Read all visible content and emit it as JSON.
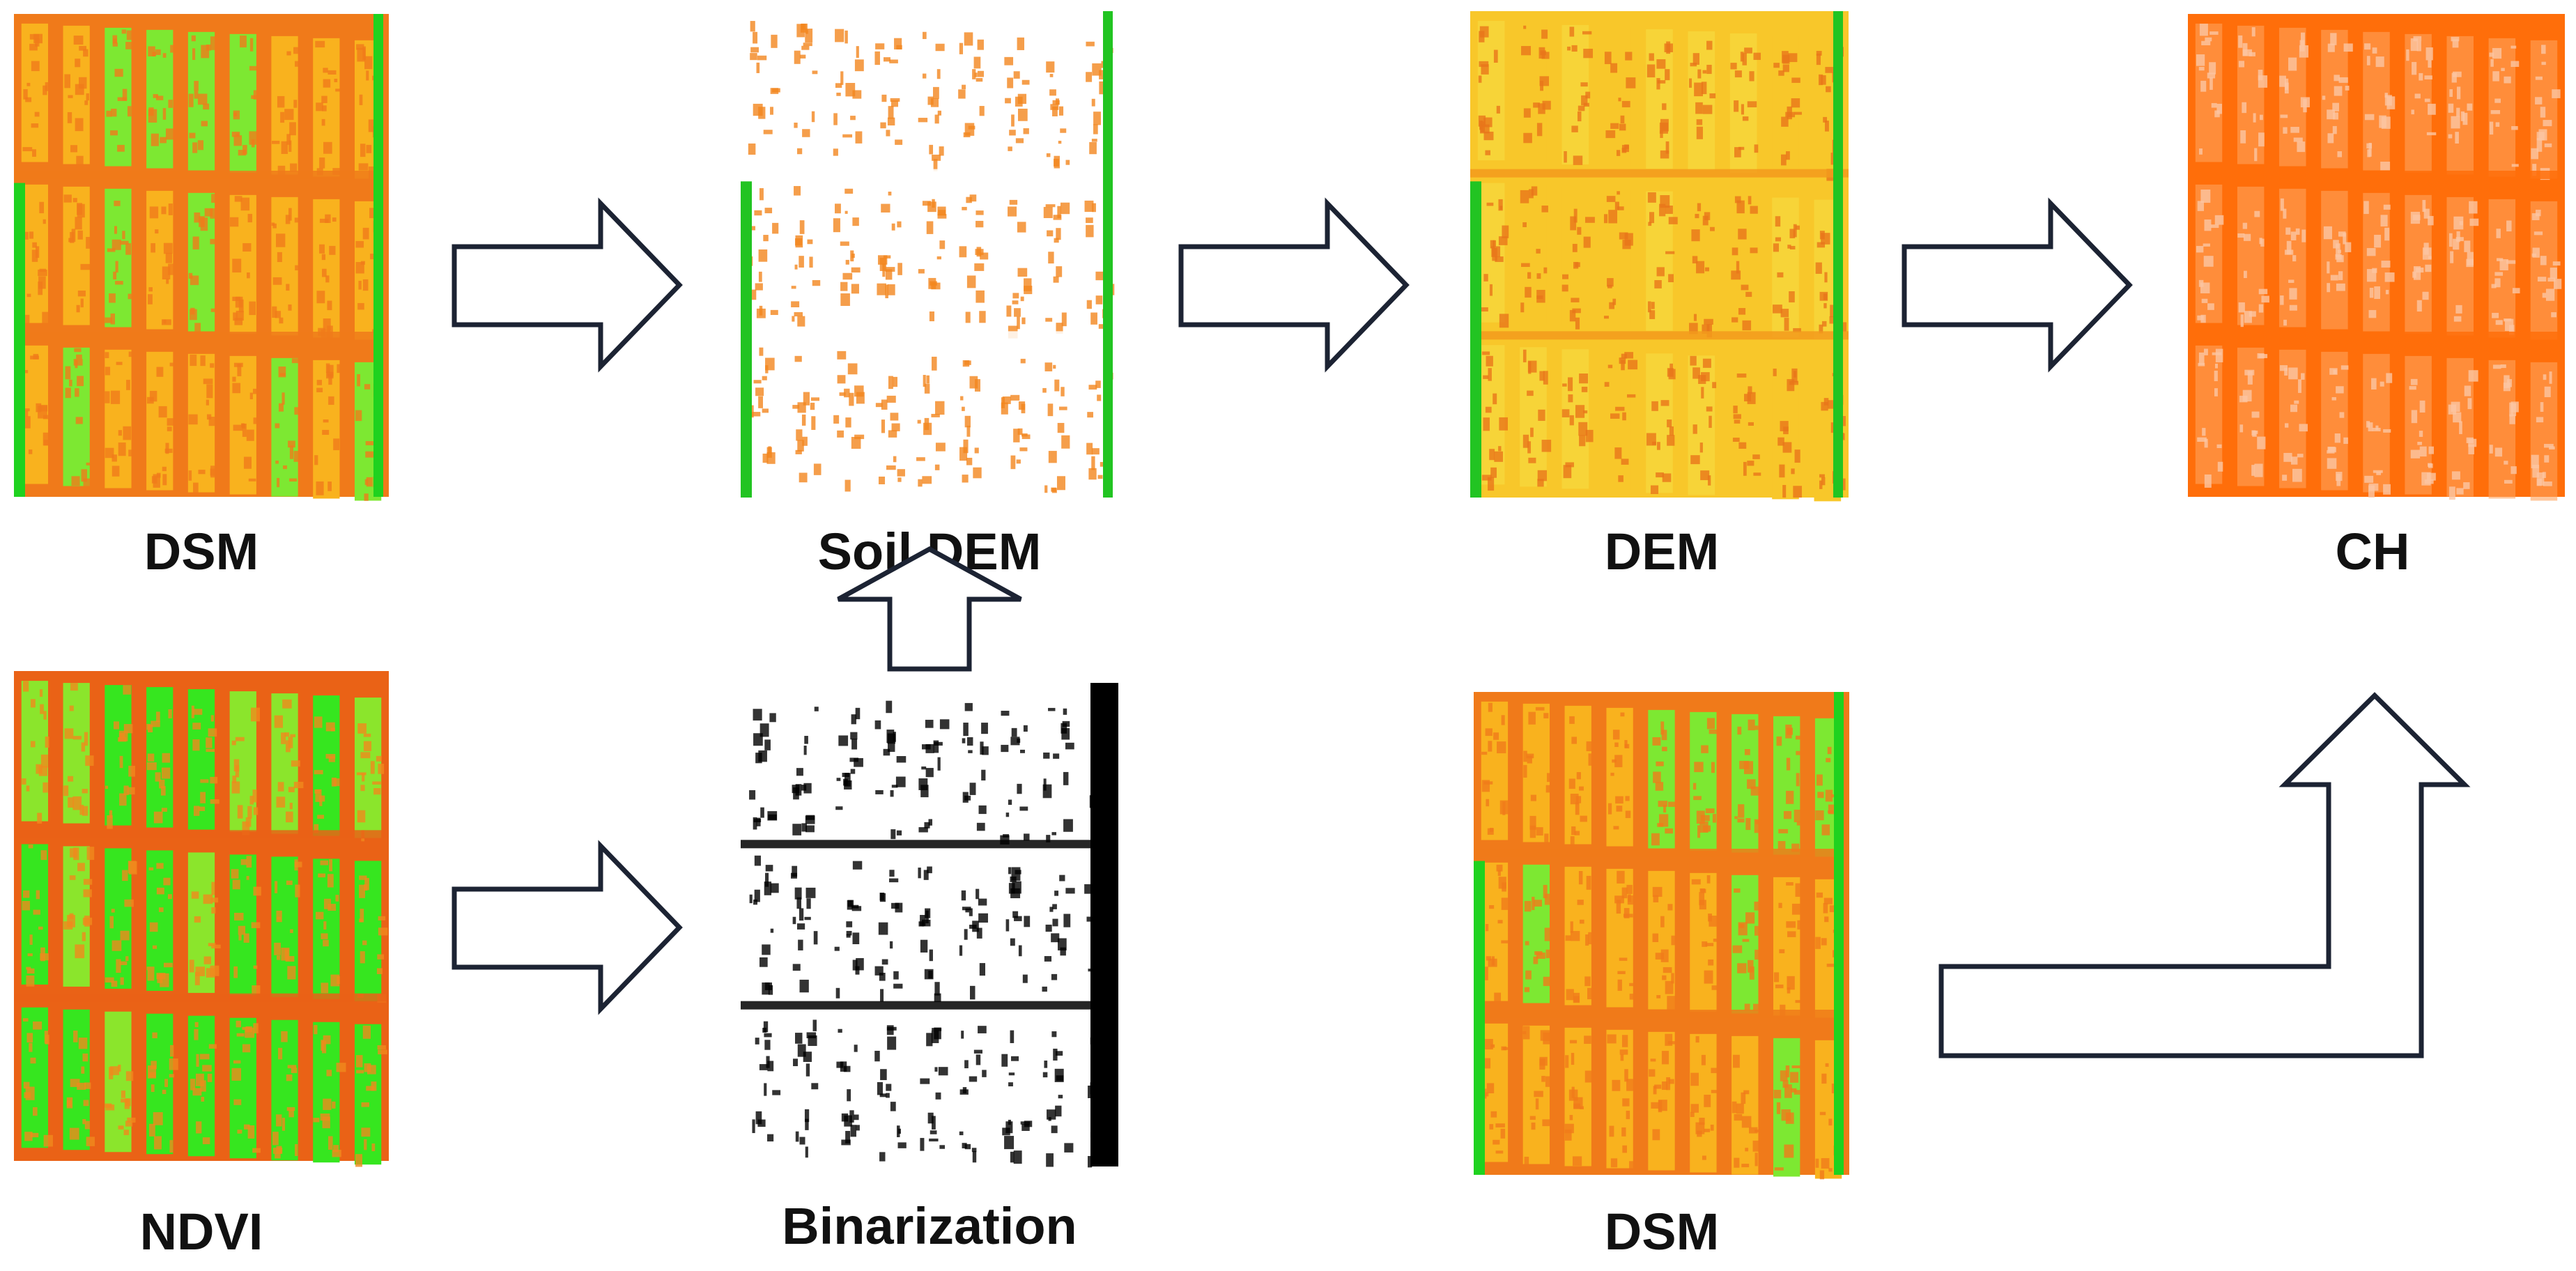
{
  "panels": {
    "dsm_top": {
      "label": "DSM",
      "style": "dsm"
    },
    "soil_dem": {
      "label": "Soil DEM",
      "style": "soil"
    },
    "dem": {
      "label": "DEM",
      "style": "dem"
    },
    "ch": {
      "label": "CH",
      "style": "ch"
    },
    "ndvi": {
      "label": "NDVI",
      "style": "ndvi"
    },
    "binarization": {
      "label": "Binarization",
      "style": "binary"
    },
    "dsm_bottom": {
      "label": "DSM",
      "style": "dsm"
    }
  },
  "arrows": [
    {
      "from": "DSM",
      "to": "Soil DEM"
    },
    {
      "from": "Soil DEM",
      "to": "DEM"
    },
    {
      "from": "DEM",
      "to": "CH"
    },
    {
      "from": "NDVI",
      "to": "Binarization"
    },
    {
      "from": "Binarization",
      "to": "Soil DEM"
    },
    {
      "from": "DSM",
      "to": "CH"
    }
  ],
  "colors": {
    "dsm": [
      "#f07a1a",
      "#f9b21e",
      "#7de832",
      "#1fd21f"
    ],
    "soil": [
      "#ffffff",
      "#f2861e",
      "#f6b53a",
      "#21c421"
    ],
    "dem": [
      "#f39a1c",
      "#f8c72a",
      "#e8761a"
    ],
    "ch": [
      "#ff6e0a",
      "#ffa15a",
      "#fbc6a2"
    ],
    "ndvi": [
      "#ea6216",
      "#f08a1d",
      "#36e61f",
      "#8be52c"
    ],
    "binary": [
      "#ffffff",
      "#000000"
    ],
    "arrow_stroke": "#1c2333"
  }
}
